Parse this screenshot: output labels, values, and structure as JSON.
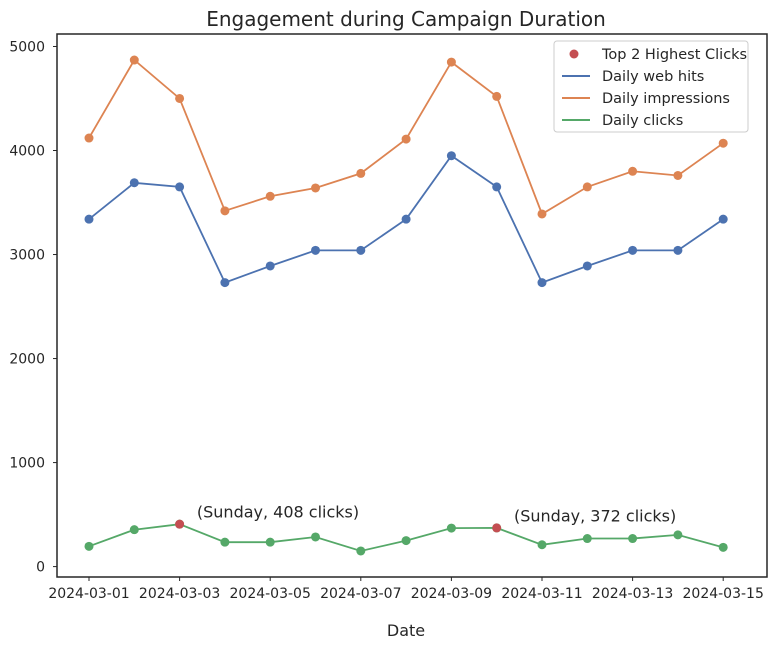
{
  "chart_data": {
    "type": "line",
    "title": "Engagement during Campaign Duration",
    "xlabel": "Date",
    "ylabel": "",
    "x": [
      "2024-03-01",
      "2024-03-02",
      "2024-03-03",
      "2024-03-04",
      "2024-03-05",
      "2024-03-06",
      "2024-03-07",
      "2024-03-08",
      "2024-03-09",
      "2024-03-10",
      "2024-03-11",
      "2024-03-12",
      "2024-03-13",
      "2024-03-14",
      "2024-03-15"
    ],
    "x_tick_labels": [
      "2024-03-01",
      "2024-03-03",
      "2024-03-05",
      "2024-03-07",
      "2024-03-09",
      "2024-03-11",
      "2024-03-13",
      "2024-03-15"
    ],
    "y_ticks": [
      0,
      1000,
      2000,
      3000,
      4000,
      5000
    ],
    "ylim": [
      -100,
      5120
    ],
    "grid": false,
    "legend_position": "top-right",
    "series": [
      {
        "name": "Daily web hits",
        "color": "#4c72b0",
        "values": [
          3340,
          3690,
          3650,
          2730,
          2890,
          3040,
          3040,
          3340,
          3950,
          3650,
          2730,
          2890,
          3040,
          3040,
          3340
        ]
      },
      {
        "name": "Daily impressions",
        "color": "#dd8452",
        "values": [
          4120,
          4870,
          4500,
          3420,
          3560,
          3640,
          3780,
          4110,
          4850,
          4520,
          3390,
          3650,
          3800,
          3760,
          4070
        ]
      },
      {
        "name": "Daily clicks",
        "color": "#55a868",
        "values": [
          195,
          355,
          408,
          235,
          235,
          285,
          150,
          250,
          370,
          372,
          210,
          270,
          270,
          305,
          185
        ]
      }
    ],
    "highlight": {
      "name": "Top 2 Highest Clicks",
      "color": "#c44e52",
      "points": [
        {
          "x": "2024-03-03",
          "y": 408
        },
        {
          "x": "2024-03-10",
          "y": 372
        }
      ]
    },
    "annotations": [
      {
        "text": "(Sunday, 408 clicks)",
        "x": "2024-03-04",
        "y": 530
      },
      {
        "text": "(Sunday, 372 clicks)",
        "x": "2024-03-11",
        "y": 490
      }
    ]
  }
}
